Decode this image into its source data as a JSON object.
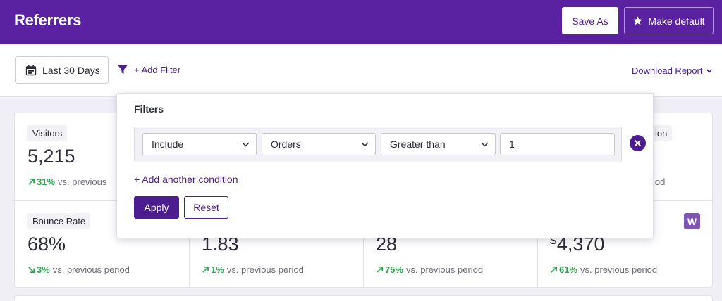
{
  "header": {
    "title": "Referrers",
    "save_as_label": "Save As",
    "make_default_label": "Make default"
  },
  "toolbar": {
    "date_range_label": "Last 30 Days",
    "add_filter_label": "+ Add Filter",
    "download_label": "Download Report"
  },
  "cards": [
    {
      "label": "Visitors",
      "value": "5,215",
      "change": "31%",
      "direction": "up",
      "comparison": "vs. previous"
    },
    {
      "label": "ion",
      "comparison": "iod"
    },
    {
      "label": "Bounce Rate",
      "value": "68%",
      "change": "3%",
      "direction": "down",
      "comparison": "vs. previous period"
    },
    {
      "value": "1.83",
      "change": "1%",
      "direction": "up",
      "comparison": "vs. previous period"
    },
    {
      "value": "28",
      "change": "75%",
      "direction": "up",
      "comparison": "vs. previous period"
    },
    {
      "currency": "$",
      "value": "4,370",
      "change": "61%",
      "direction": "up",
      "comparison": "vs. previous period",
      "badge": "W"
    }
  ],
  "filter_panel": {
    "title": "Filters",
    "condition": {
      "mode": "Include",
      "field": "Orders",
      "operator": "Greater than",
      "value": "1"
    },
    "add_condition_label": "+ Add another condition",
    "apply_label": "Apply",
    "reset_label": "Reset"
  },
  "colors": {
    "brand": "#5a22a0",
    "accent": "#4b1d8f",
    "positive": "#2fa84f",
    "woo_badge": "#7f54b3"
  },
  "icons": {
    "date": "calendar-icon",
    "filter": "funnel-icon",
    "default": "star-icon",
    "download": "chevron-down-icon",
    "remove": "close-icon",
    "trend_up": "arrow-up-right-icon",
    "trend_down": "arrow-down-right-icon"
  }
}
